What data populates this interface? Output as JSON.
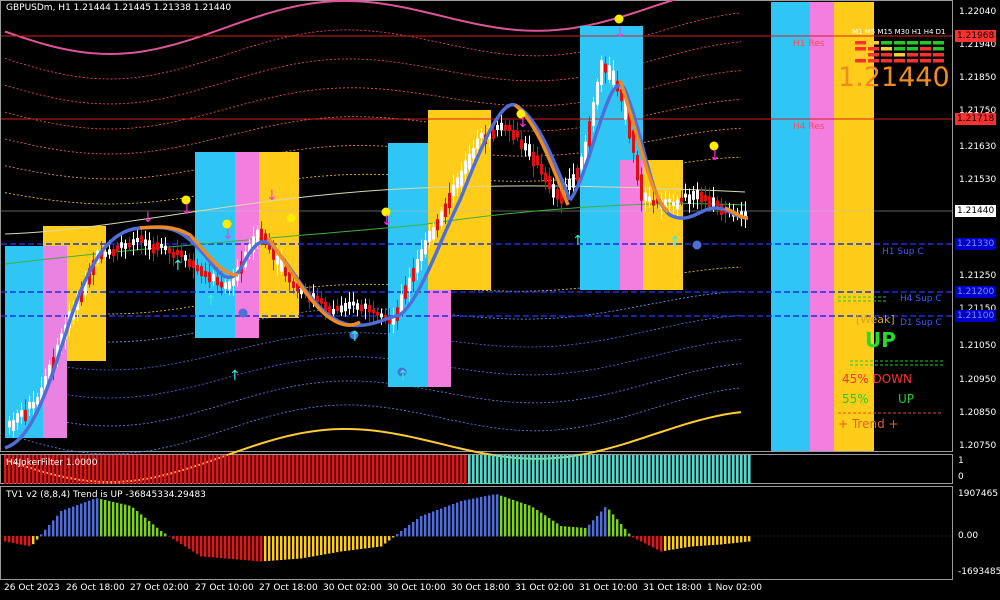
{
  "chart_header": {
    "symbol_line": "GBPUSDm, H1  1.21444 1.21445 1.21338 1.21440",
    "filter_label": "H4JokerFilter 1.0000",
    "tv1_label": "TV1 v2 (8,8,4) Trend is UP -36845334.29483"
  },
  "price_axis": {
    "ticks": [
      "1.22040",
      "1.21940",
      "1.21850",
      "1.21750",
      "1.21630",
      "1.21530",
      "1.21350",
      "1.21250",
      "1.21150",
      "1.21050",
      "1.20950",
      "1.20850",
      "1.20750"
    ],
    "tags": [
      {
        "text": "1.21968",
        "color": "#ff3030",
        "fg": "#000000"
      },
      {
        "text": "1.21718",
        "color": "#ff3030",
        "fg": "#000000"
      },
      {
        "text": "1.21440",
        "color": "#ffffff",
        "fg": "#000000"
      },
      {
        "text": "1.21330",
        "color": "#0000cc",
        "fg": "#7a8cff"
      },
      {
        "text": "1.21200",
        "color": "#0000cc",
        "fg": "#7a8cff"
      },
      {
        "text": "1.21100",
        "color": "#0000cc",
        "fg": "#7a8cff"
      }
    ]
  },
  "filter_axis": {
    "top": "1",
    "bottom": "0"
  },
  "tv1_axis": {
    "top": "1907465",
    "mid": "0.00",
    "bottom": "-1693485"
  },
  "time_axis": [
    "26 Oct 2023",
    "26 Oct 18:00",
    "27 Oct 02:00",
    "27 Oct 10:00",
    "27 Oct 18:00",
    "30 Oct 02:00",
    "30 Oct 10:00",
    "30 Oct 18:00",
    "31 Oct 02:00",
    "31 Oct 10:00",
    "31 Oct 18:00",
    "1 Nov 02:00"
  ],
  "levels": {
    "h1_res": "H1 Res",
    "h4_res": "H4 Res",
    "h1_sup": "H1 Sup C",
    "h4_sup": "H4 Sup C",
    "d1_sup": "D1 Sup C"
  },
  "panel": {
    "timeframes": "M1 M5 M15 M30 H1 H4 D1",
    "big_price": "1.21440",
    "weak_label": "[Weak]",
    "trend_word": "UP",
    "down_pct": "45% DOWN",
    "up_pct": "55%",
    "up_word": "UP",
    "trend_row": "+  Trend  +"
  },
  "colors": {
    "background": "#000000",
    "bull_candle": "#ffffff",
    "bear_candle": "#dd1111",
    "box_cyan": "#2fc6f5",
    "box_pink": "#f47ee0",
    "box_yellow": "#ffcc1a",
    "ma_blue": "#4f6fd8",
    "ma_orange": "#f08a24",
    "filter_red": "#d41c1c",
    "filter_teal": "#58d6c8"
  }
}
